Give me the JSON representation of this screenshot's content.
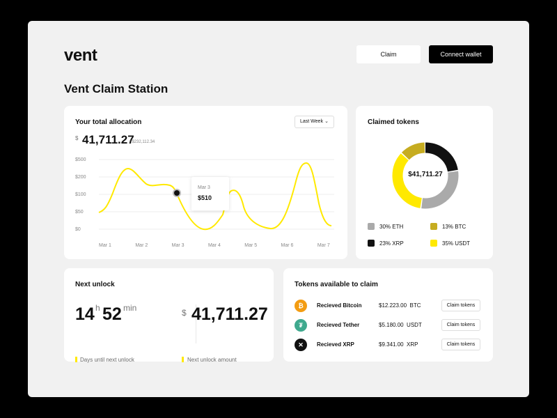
{
  "header": {
    "logo": "vent",
    "claim_label": "Claim",
    "connect_label": "Connect wallet"
  },
  "page_title": "Vent Claim Station",
  "allocation": {
    "title": "Your total allocation",
    "dropdown": "Last Week",
    "currency": "$",
    "total": "41,711.27",
    "sub_total": "/ $232,112.34",
    "tooltip": {
      "date": "Mar 3",
      "value": "$510"
    }
  },
  "chart_data": {
    "type": "line",
    "y_ticks": [
      "$500",
      "$200",
      "$100",
      "$50",
      "$0"
    ],
    "x": [
      "Mar 1",
      "Mar 2",
      "Mar 3",
      "Mar 4",
      "Mar 5",
      "Mar 6",
      "Mar 7"
    ],
    "highlight": {
      "x": "Mar 3",
      "y": "$510"
    },
    "grid": true,
    "series_color": "#ffe900"
  },
  "claimed": {
    "title": "Claimed tokens",
    "total": "$41,711.27",
    "chart_data": {
      "type": "pie",
      "slices": [
        {
          "label": "ETH",
          "percent": 30,
          "color": "#aaaaaa"
        },
        {
          "label": "BTC",
          "percent": 13,
          "color": "#c6ac20"
        },
        {
          "label": "XRP",
          "percent": 23,
          "color": "#111111"
        },
        {
          "label": "USDT",
          "percent": 35,
          "color": "#ffe900"
        }
      ]
    },
    "legend": [
      {
        "text": "30% ETH",
        "color": "#aaaaaa"
      },
      {
        "text": "13% BTC",
        "color": "#c6ac20"
      },
      {
        "text": "23% XRP",
        "color": "#111111"
      },
      {
        "text": "35% USDT",
        "color": "#ffe900"
      }
    ]
  },
  "unlock": {
    "title": "Next unlock",
    "hours": "14",
    "hours_unit": "h",
    "minutes": "52",
    "minutes_unit": "min",
    "days_label": "Days until next unlock",
    "currency": "$",
    "amount": "41,711.27",
    "amount_label": "Next unlock amount"
  },
  "tokens": {
    "title": "Tokens available to claim",
    "items": [
      {
        "icon": "bitcoin-icon",
        "glyph": "₿",
        "color": "#f39c12",
        "name": "Recieved Bitcoin",
        "amount": "$12.223.00",
        "symbol": "BTC",
        "button": "Claim tokens"
      },
      {
        "icon": "tether-icon",
        "glyph": "₮",
        "color": "#3fa98e",
        "name": "Recieved Tether",
        "amount": "$5.180.00",
        "symbol": "USDT",
        "button": "Claim tokens"
      },
      {
        "icon": "xrp-icon",
        "glyph": "✕",
        "color": "#111111",
        "name": "Recieved XRP",
        "amount": "$9.341.00",
        "symbol": "XRP",
        "button": "Claim tokens"
      }
    ]
  }
}
